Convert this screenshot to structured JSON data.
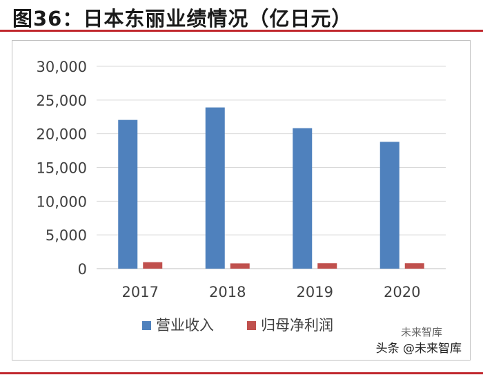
{
  "header": {
    "title": "图36：日本东丽业绩情况（亿日元）"
  },
  "watermark": {
    "line1": "未来智库",
    "line2": "头条 @未来智库"
  },
  "chart_data": {
    "type": "bar",
    "categories": [
      "2017",
      "2018",
      "2019",
      "2020"
    ],
    "series": [
      {
        "name": "营业收入",
        "color": "#4f81bd",
        "values": [
          22050,
          23900,
          20830,
          18800
        ]
      },
      {
        "name": "归母净利润",
        "color": "#c0504d",
        "values": [
          960,
          780,
          800,
          800
        ]
      }
    ],
    "yticks": [
      "0",
      "5,000",
      "10,000",
      "15,000",
      "20,000",
      "25,000",
      "30,000"
    ],
    "ylim": [
      0,
      30000
    ],
    "grid": true,
    "legend": "bottom"
  }
}
